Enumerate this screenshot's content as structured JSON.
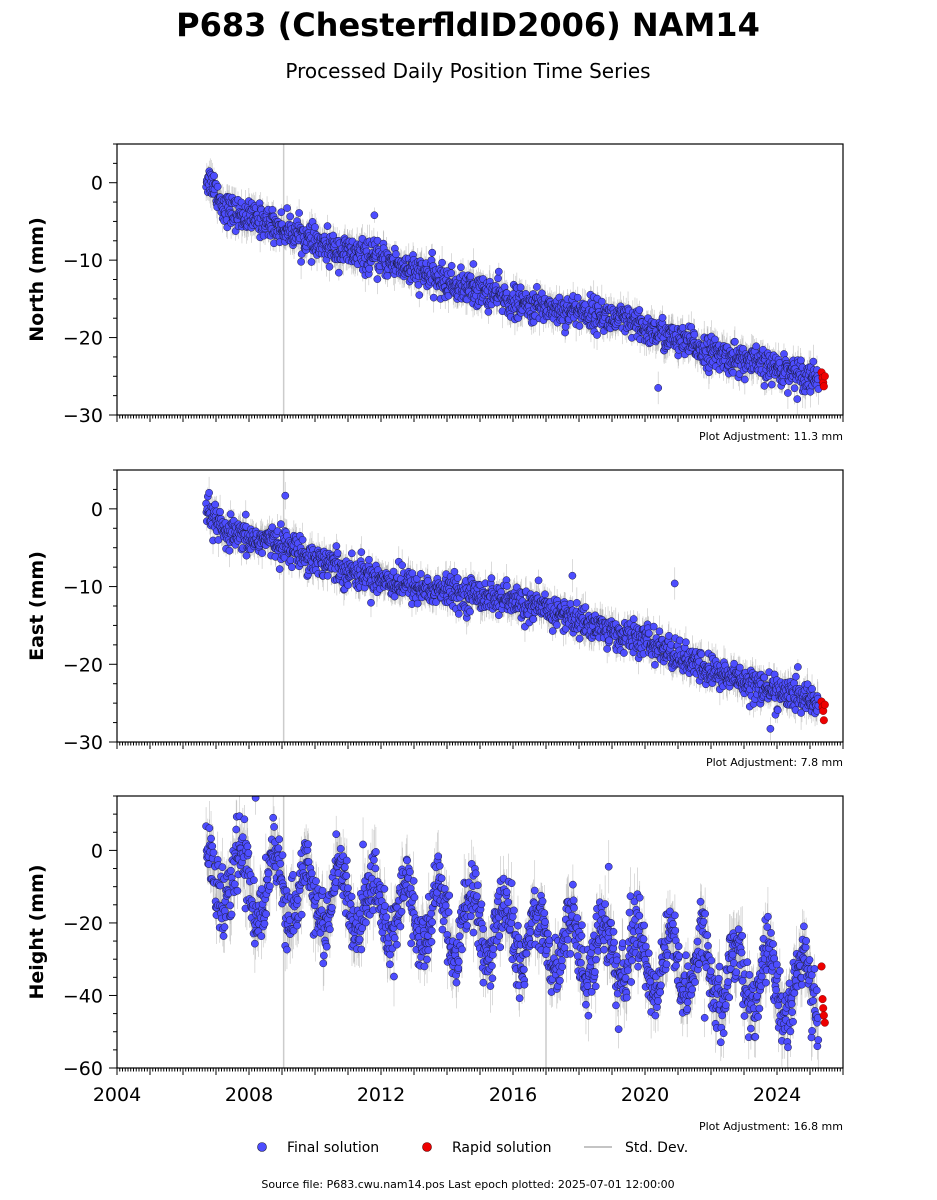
{
  "title": "P683 (ChesterfldID2006) NAM14",
  "subtitle": "Processed Daily Position Time Series",
  "footer": "Source file: P683.cwu.nam14.pos  Last epoch plotted: 2025-07-01 12:00:00",
  "legend": {
    "final": "Final solution",
    "rapid": "Rapid solution",
    "std": "Std. Dev."
  },
  "colors": {
    "final_fill": "#4d4dff",
    "final_edge": "#1a1a3a",
    "rapid": "#ee0000",
    "std_dev": "#b0b0b0",
    "gap_line": "#cccccc"
  },
  "chart_data": [
    {
      "type": "scatter",
      "ylabel": "North (mm)",
      "adjustment": "Plot Adjustment: 11.3 mm",
      "xlim": [
        2004,
        2026
      ],
      "ylim": [
        -30,
        5
      ],
      "yticks": [
        0,
        -10,
        -20,
        -30
      ],
      "ytick_labels": [
        "0",
        "−10",
        "−20",
        "−30"
      ],
      "gap_line_x": 2009.05,
      "final_series": {
        "name": "Final solution",
        "x": [
          2006.7,
          2006.9,
          2007.2,
          2007.6,
          2008.0,
          2008.5,
          2009.0,
          2009.5,
          2010.0,
          2010.5,
          2011.0,
          2011.5,
          2012.0,
          2012.5,
          2013.0,
          2013.5,
          2014.0,
          2014.5,
          2015.0,
          2015.5,
          2016.0,
          2016.5,
          2017.0,
          2017.5,
          2018.0,
          2018.5,
          2019.0,
          2019.5,
          2020.0,
          2020.5,
          2021.0,
          2021.5,
          2022.0,
          2022.5,
          2023.0,
          2023.5,
          2024.0,
          2024.5,
          2025.0,
          2025.25
        ],
        "y": [
          0.5,
          0.0,
          -3.0,
          -4.0,
          -4.5,
          -5.0,
          -6.0,
          -6.5,
          -8.0,
          -8.5,
          -9.0,
          -9.5,
          -10.0,
          -10.5,
          -11.5,
          -12.0,
          -13.0,
          -13.5,
          -14.0,
          -14.5,
          -15.5,
          -16.0,
          -16.0,
          -16.5,
          -16.5,
          -17.0,
          -17.5,
          -18.0,
          -19.0,
          -19.5,
          -20.5,
          -21.0,
          -22.0,
          -22.5,
          -23.0,
          -23.5,
          -24.0,
          -24.5,
          -25.0,
          -25.0
        ]
      },
      "rapid_series": {
        "name": "Rapid solution",
        "x": [
          2025.35,
          2025.38,
          2025.4,
          2025.42,
          2025.45
        ],
        "y": [
          -24.5,
          -25.2,
          -25.8,
          -26.3,
          -25.0
        ]
      }
    },
    {
      "type": "scatter",
      "ylabel": "East (mm)",
      "adjustment": "Plot Adjustment: 7.8 mm",
      "xlim": [
        2004,
        2026
      ],
      "ylim": [
        -30,
        5
      ],
      "yticks": [
        0,
        -10,
        -20,
        -30
      ],
      "ytick_labels": [
        "0",
        "−10",
        "−20",
        "−30"
      ],
      "gap_line_x": 2009.05,
      "final_series": {
        "name": "Final solution",
        "x": [
          2006.7,
          2006.9,
          2007.2,
          2007.6,
          2008.0,
          2008.5,
          2009.0,
          2009.5,
          2010.0,
          2010.5,
          2011.0,
          2011.5,
          2012.0,
          2012.5,
          2013.0,
          2013.5,
          2014.0,
          2014.5,
          2015.0,
          2015.5,
          2016.0,
          2016.5,
          2017.0,
          2017.5,
          2018.0,
          2018.5,
          2019.0,
          2019.5,
          2020.0,
          2020.5,
          2021.0,
          2021.5,
          2022.0,
          2022.5,
          2023.0,
          2023.5,
          2024.0,
          2024.5,
          2025.0,
          2025.25
        ],
        "y": [
          0.0,
          -1.0,
          -3.0,
          -3.5,
          -4.0,
          -4.0,
          -4.5,
          -5.5,
          -6.5,
          -7.0,
          -8.0,
          -8.5,
          -9.0,
          -9.5,
          -10.0,
          -10.5,
          -10.5,
          -11.0,
          -11.0,
          -11.5,
          -12.0,
          -12.5,
          -13.0,
          -13.5,
          -14.5,
          -15.0,
          -16.0,
          -16.5,
          -17.0,
          -18.0,
          -19.0,
          -20.0,
          -21.0,
          -21.5,
          -22.0,
          -23.0,
          -23.5,
          -24.0,
          -24.5,
          -25.0
        ]
      },
      "rapid_series": {
        "name": "Rapid solution",
        "x": [
          2025.35,
          2025.38,
          2025.4,
          2025.42,
          2025.45
        ],
        "y": [
          -24.8,
          -25.5,
          -26.0,
          -27.2,
          -25.2
        ]
      }
    },
    {
      "type": "scatter",
      "ylabel": "Height (mm)",
      "adjustment": "Plot Adjustment: 16.8 mm",
      "xlim": [
        2004,
        2026
      ],
      "ylim": [
        -60,
        15
      ],
      "yticks": [
        0,
        -20,
        -40,
        -60
      ],
      "ytick_labels": [
        "0",
        "−20",
        "−40",
        "−60"
      ],
      "xticks": [
        2004,
        2008,
        2012,
        2016,
        2020,
        2024
      ],
      "xtick_labels": [
        "2004",
        "2008",
        "2012",
        "2016",
        "2020",
        "2024"
      ],
      "gap_line_x": 2009.05,
      "second_gap_line_x": 2017.0,
      "final_series": {
        "name": "Final solution",
        "seasonal": true,
        "x": [
          2006.7,
          2006.9,
          2007.2,
          2007.6,
          2008.0,
          2008.5,
          2009.0,
          2009.5,
          2010.0,
          2010.5,
          2011.0,
          2011.5,
          2012.0,
          2012.5,
          2013.0,
          2013.5,
          2014.0,
          2014.5,
          2015.0,
          2015.5,
          2016.0,
          2016.5,
          2017.0,
          2017.5,
          2018.0,
          2018.5,
          2019.0,
          2019.5,
          2020.0,
          2020.5,
          2021.0,
          2021.5,
          2022.0,
          2022.5,
          2023.0,
          2023.5,
          2024.0,
          2024.5,
          2025.0,
          2025.25
        ],
        "y": [
          2.0,
          -2.0,
          -10.0,
          -5.0,
          -8.0,
          -6.0,
          -12.0,
          -10.0,
          -15.0,
          -12.0,
          -18.0,
          -14.0,
          -20.0,
          -16.0,
          -22.0,
          -18.0,
          -24.0,
          -20.0,
          -26.0,
          -22.0,
          -28.0,
          -24.0,
          -32.0,
          -28.0,
          -34.0,
          -30.0,
          -36.0,
          -32.0,
          -38.0,
          -34.0,
          -38.0,
          -34.0,
          -40.0,
          -36.0,
          -42.0,
          -38.0,
          -44.0,
          -40.0,
          -44.0,
          -42.0
        ]
      },
      "rapid_series": {
        "name": "Rapid solution",
        "x": [
          2025.35,
          2025.38,
          2025.4,
          2025.42,
          2025.45
        ],
        "y": [
          -32.0,
          -41.0,
          -43.5,
          -45.5,
          -47.5
        ]
      }
    }
  ]
}
